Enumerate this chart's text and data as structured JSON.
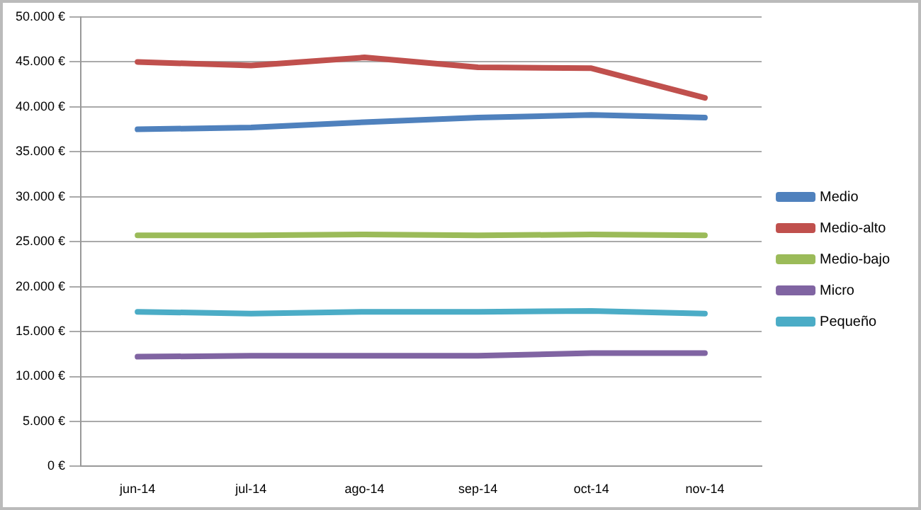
{
  "chart_data": {
    "type": "line",
    "categories": [
      "jun-14",
      "jul-14",
      "ago-14",
      "sep-14",
      "oct-14",
      "nov-14"
    ],
    "series": [
      {
        "name": "Medio",
        "color": "#4f81bd",
        "values": [
          37500,
          37700,
          38300,
          38800,
          39100,
          38800
        ]
      },
      {
        "name": "Medio-alto",
        "color": "#c0504d",
        "values": [
          45000,
          44600,
          45500,
          44400,
          44300,
          41000
        ]
      },
      {
        "name": "Medio-bajo",
        "color": "#9bbb59",
        "values": [
          25700,
          25700,
          25800,
          25700,
          25800,
          25700
        ]
      },
      {
        "name": "Micro",
        "color": "#8064a2",
        "values": [
          12200,
          12300,
          12300,
          12300,
          12600,
          12600
        ]
      },
      {
        "name": "Pequeño",
        "color": "#4bacc6",
        "values": [
          17200,
          17000,
          17200,
          17200,
          17300,
          17000
        ]
      }
    ],
    "ylim": [
      0,
      50000
    ],
    "yticks": [
      {
        "value": 0,
        "label": "0 €"
      },
      {
        "value": 5000,
        "label": "5.000 €"
      },
      {
        "value": 10000,
        "label": "10.000 €"
      },
      {
        "value": 15000,
        "label": "15.000 €"
      },
      {
        "value": 20000,
        "label": "20.000 €"
      },
      {
        "value": 25000,
        "label": "25.000 €"
      },
      {
        "value": 30000,
        "label": "30.000 €"
      },
      {
        "value": 35000,
        "label": "35.000 €"
      },
      {
        "value": 40000,
        "label": "40.000 €"
      },
      {
        "value": 45000,
        "label": "45.000 €"
      },
      {
        "value": 50000,
        "label": "50.000 €"
      }
    ],
    "grid": "y",
    "legend": "right",
    "marker": "none",
    "line_style": "solid"
  }
}
